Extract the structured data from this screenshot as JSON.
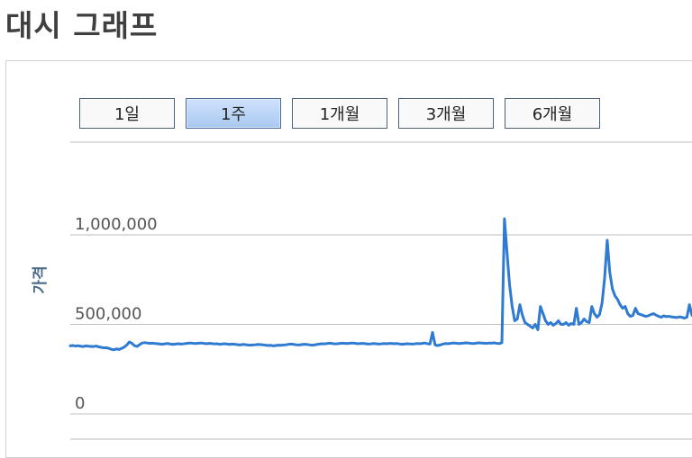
{
  "page": {
    "title": "대시 그래프"
  },
  "range_buttons": [
    {
      "label": "1일",
      "active": false
    },
    {
      "label": "1주",
      "active": true
    },
    {
      "label": "1개월",
      "active": false
    },
    {
      "label": "3개월",
      "active": false
    },
    {
      "label": "6개월",
      "active": false
    }
  ],
  "colors": {
    "line": "#2f7bd1",
    "grid": "#bdbdbd",
    "tick_text": "#555555",
    "ylabel": "#4a6a8a",
    "active_button": "#b7d3f5"
  },
  "chart_data": {
    "type": "line",
    "xlabel": "",
    "ylabel": "가격",
    "ylim": [
      0,
      1000000
    ],
    "yticks": [
      {
        "value": 0,
        "label": "0"
      },
      {
        "value": 500000,
        "label": "500,000"
      },
      {
        "value": 1000000,
        "label": "1,000,000"
      }
    ],
    "grid": true,
    "series": [
      {
        "values": [
          380000,
          382000,
          379000,
          381000,
          378000,
          376000,
          380000,
          378000,
          377000,
          376000,
          379000,
          375000,
          372000,
          369000,
          370000,
          366000,
          361000,
          358000,
          363000,
          360000,
          366000,
          373000,
          385000,
          402000,
          394000,
          381000,
          377000,
          387000,
          396000,
          398000,
          396000,
          394000,
          395000,
          393000,
          392000,
          390000,
          389000,
          392000,
          393000,
          390000,
          388000,
          390000,
          392000,
          390000,
          391000,
          393000,
          395000,
          396000,
          394000,
          393000,
          395000,
          396000,
          394000,
          392000,
          394000,
          393000,
          391000,
          392000,
          389000,
          390000,
          392000,
          390000,
          388000,
          390000,
          389000,
          387000,
          385000,
          388000,
          387000,
          385000,
          384000,
          385000,
          386000,
          388000,
          387000,
          386000,
          384000,
          382000,
          383000,
          380000,
          382000,
          384000,
          383000,
          385000,
          386000,
          389000,
          390000,
          388000,
          386000,
          385000,
          387000,
          389000,
          388000,
          386000,
          384000,
          385000,
          388000,
          390000,
          392000,
          391000,
          393000,
          395000,
          393000,
          391000,
          392000,
          394000,
          395000,
          394000,
          393000,
          395000,
          396000,
          394000,
          392000,
          393000,
          394000,
          392000,
          390000,
          391000,
          393000,
          392000,
          390000,
          391000,
          393000,
          392000,
          393000,
          394000,
          392000,
          393000,
          391000,
          389000,
          390000,
          392000,
          391000,
          390000,
          391000,
          393000,
          392000,
          394000,
          396000,
          392000,
          390000,
          455000,
          385000,
          382000,
          385000,
          390000,
          393000,
          392000,
          394000,
          396000,
          395000,
          393000,
          394000,
          395000,
          397000,
          396000,
          394000,
          393000,
          395000,
          397000,
          396000,
          395000,
          394000,
          396000,
          395000,
          397000,
          394000,
          393000,
          398000,
          1090000,
          900000,
          720000,
          600000,
          520000,
          530000,
          610000,
          550000,
          510000,
          500000,
          490000,
          480000,
          500000,
          470000,
          600000,
          560000,
          520000,
          500000,
          510000,
          495000,
          505000,
          520000,
          500000,
          500000,
          510000,
          495000,
          505000,
          500000,
          590000,
          500000,
          510000,
          530000,
          515000,
          510000,
          600000,
          560000,
          540000,
          555000,
          620000,
          760000,
          970000,
          790000,
          700000,
          660000,
          640000,
          610000,
          590000,
          600000,
          560000,
          545000,
          550000,
          590000,
          560000,
          555000,
          550000,
          545000,
          548000,
          555000,
          560000,
          552000,
          545000,
          540000,
          548000,
          543000,
          545000,
          542000,
          540000,
          538000,
          542000,
          540000,
          535000,
          540000,
          610000,
          550000
        ]
      }
    ]
  }
}
